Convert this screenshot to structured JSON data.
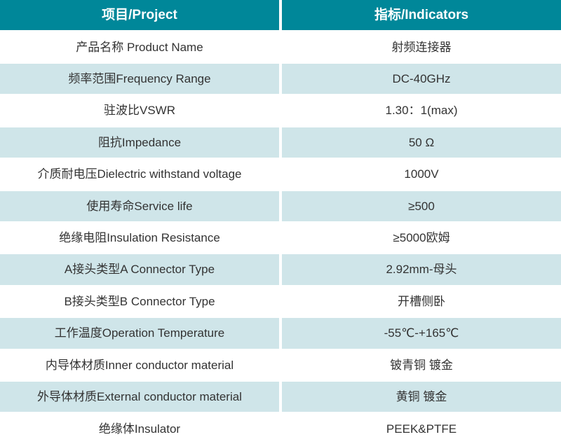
{
  "table": {
    "header": {
      "project": "项目/Project",
      "indicators": "指标/Indicators"
    },
    "rows": [
      {
        "project": "产品名称 Product Name",
        "indicator": "射频连接器"
      },
      {
        "project": "频率范围Frequency Range",
        "indicator": "DC-40GHz"
      },
      {
        "project": "驻波比VSWR",
        "indicator": "1.30：1(max)"
      },
      {
        "project": "阻抗Impedance",
        "indicator": "50 Ω"
      },
      {
        "project": "介质耐电压Dielectric withstand voltage",
        "indicator": "1000V"
      },
      {
        "project": "使用寿命Service life",
        "indicator": "≥500"
      },
      {
        "project": "绝缘电阻Insulation Resistance",
        "indicator": "≥5000欧姆"
      },
      {
        "project": "A接头类型A Connector Type",
        "indicator": "2.92mm-母头"
      },
      {
        "project": "B接头类型B Connector Type",
        "indicator": "开槽侧卧"
      },
      {
        "project": "工作温度Operation Temperature",
        "indicator": "-55℃-+165℃"
      },
      {
        "project": "内导体材质Inner conductor material",
        "indicator": "铍青铜 镀金"
      },
      {
        "project": "外导体材质External conductor material",
        "indicator": "黄铜 镀金"
      },
      {
        "project": "绝缘体Insulator",
        "indicator": "PEEK&PTFE"
      }
    ],
    "colors": {
      "header_bg": "#008799",
      "header_text": "#ffffff",
      "row_alt_bg": "#cfe5e9",
      "body_text": "#333333"
    }
  }
}
